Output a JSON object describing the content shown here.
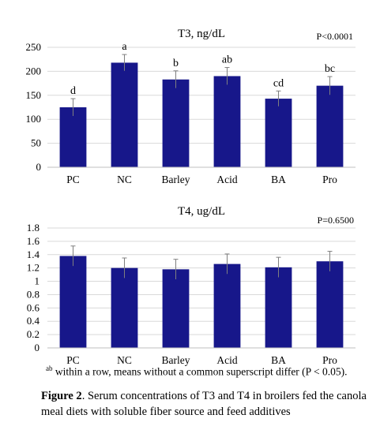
{
  "chart_data": [
    {
      "type": "bar",
      "title": "T3, ng/dL",
      "annotation": "P<0.0001",
      "categories": [
        "PC",
        "NC",
        "Barley",
        "Acid",
        "BA",
        "Pro"
      ],
      "values": [
        125,
        218,
        183,
        190,
        143,
        170
      ],
      "error": [
        18,
        17,
        18,
        18,
        16,
        19
      ],
      "letters": [
        "d",
        "a",
        "b",
        "ab",
        "cd",
        "bc"
      ],
      "ylim": [
        0,
        250
      ],
      "yticks": [
        "0",
        "50",
        "100",
        "150",
        "200",
        "250"
      ],
      "grid": true,
      "color": "#17178a"
    },
    {
      "type": "bar",
      "title": "T4, ug/dL",
      "annotation": "P=0.6500",
      "categories": [
        "PC",
        "NC",
        "Barley",
        "Acid",
        "BA",
        "Pro"
      ],
      "values": [
        1.38,
        1.2,
        1.18,
        1.26,
        1.21,
        1.3
      ],
      "error": [
        0.15,
        0.15,
        0.15,
        0.15,
        0.15,
        0.15
      ],
      "ylim": [
        0,
        1.8
      ],
      "yticks": [
        "0",
        "0.2",
        "0.4",
        "0.6",
        "0.8",
        "1",
        "1.2",
        "1.4",
        "1.6",
        "1.8"
      ],
      "grid": true,
      "color": "#17178a"
    }
  ],
  "footnote": {
    "superscript": "ab",
    "text": " within a row, means without a common superscript differ (P < 0.05)."
  },
  "caption": {
    "label": "Figure 2",
    "text": ". Serum concentrations of T3 and T4 in broilers fed the canola meal diets with soluble fiber source and feed additives"
  }
}
